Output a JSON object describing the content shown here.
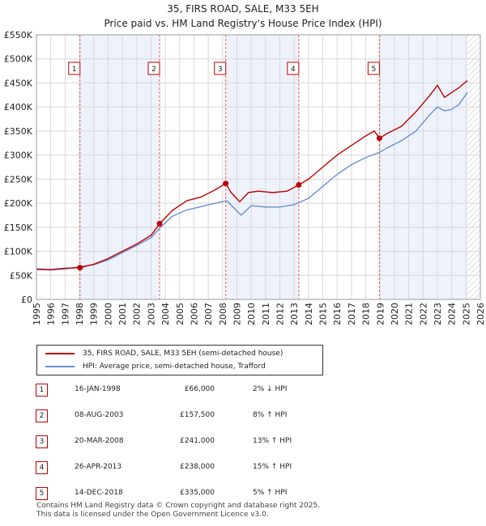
{
  "title": "35, FIRS ROAD, SALE, M33 5EH",
  "subtitle": "Price paid vs. HM Land Registry's House Price Index (HPI)",
  "colors": {
    "price_line": "#c00000",
    "hpi_line": "#6a8fcf",
    "band": "#eef2fb",
    "grid": "#d8d8d8",
    "vline": "#e06060"
  },
  "chart_data": {
    "type": "line",
    "xlim": [
      1995,
      2026
    ],
    "ylim": [
      0,
      550000
    ],
    "ytick_labels": [
      "£0",
      "£50K",
      "£100K",
      "£150K",
      "£200K",
      "£250K",
      "£300K",
      "£350K",
      "£400K",
      "£450K",
      "£500K",
      "£550K"
    ],
    "ytick_values": [
      0,
      50000,
      100000,
      150000,
      200000,
      250000,
      300000,
      350000,
      400000,
      450000,
      500000,
      550000
    ],
    "xtick_labels": [
      "1995",
      "1996",
      "1997",
      "1998",
      "1999",
      "2000",
      "2001",
      "2002",
      "2003",
      "2004",
      "2005",
      "2006",
      "2007",
      "2008",
      "2009",
      "2010",
      "2011",
      "2012",
      "2013",
      "2014",
      "2015",
      "2016",
      "2017",
      "2018",
      "2019",
      "2020",
      "2021",
      "2022",
      "2023",
      "2024",
      "2025",
      "2026"
    ],
    "grid": true,
    "series": [
      {
        "name": "35, FIRS ROAD, SALE, M33 5EH (semi-detached house)",
        "x": [
          1995.0,
          1996.0,
          1997.0,
          1998.04,
          1999.0,
          2000.0,
          2001.0,
          2002.0,
          2003.0,
          2003.6,
          2004.5,
          2005.5,
          2006.5,
          2007.5,
          2008.22,
          2008.6,
          2009.2,
          2009.8,
          2010.5,
          2011.5,
          2012.5,
          2013.32,
          2014.0,
          2015.0,
          2016.0,
          2017.0,
          2018.0,
          2018.6,
          2018.95,
          2019.5,
          2020.5,
          2021.5,
          2022.5,
          2023.0,
          2023.5,
          2024.0,
          2024.5,
          2025.1
        ],
        "values": [
          63000,
          62000,
          65000,
          66000,
          73000,
          85000,
          100000,
          115000,
          133000,
          157500,
          185000,
          205000,
          213000,
          228000,
          241000,
          222000,
          203000,
          222000,
          225000,
          222000,
          225000,
          238000,
          250000,
          275000,
          300000,
          320000,
          340000,
          350000,
          335000,
          345000,
          360000,
          390000,
          425000,
          445000,
          420000,
          430000,
          440000,
          455000
        ]
      },
      {
        "name": "HPI: Average price, semi-detached house, Trafford",
        "x": [
          1995.0,
          1996.0,
          1997.0,
          1998.0,
          1999.0,
          2000.0,
          2001.0,
          2002.0,
          2003.0,
          2003.6,
          2004.5,
          2005.5,
          2006.5,
          2007.5,
          2008.3,
          2008.8,
          2009.3,
          2010.0,
          2011.0,
          2012.0,
          2013.0,
          2014.0,
          2015.0,
          2016.0,
          2017.0,
          2018.0,
          2018.9,
          2019.5,
          2020.5,
          2021.5,
          2022.5,
          2023.0,
          2023.5,
          2024.0,
          2024.5,
          2025.1
        ],
        "values": [
          62000,
          61000,
          63000,
          68000,
          72000,
          82000,
          97000,
          112000,
          128000,
          148000,
          173000,
          186000,
          193000,
          200000,
          205000,
          190000,
          175000,
          195000,
          192000,
          192000,
          197000,
          210000,
          235000,
          260000,
          280000,
          295000,
          305000,
          315000,
          330000,
          350000,
          385000,
          400000,
          392000,
          395000,
          405000,
          430000
        ]
      }
    ],
    "sale_markers": [
      {
        "label": "1",
        "x": 1998.04,
        "y": 66000
      },
      {
        "label": "2",
        "x": 2003.6,
        "y": 157500
      },
      {
        "label": "3",
        "x": 2008.22,
        "y": 241000
      },
      {
        "label": "4",
        "x": 2013.32,
        "y": 238000
      },
      {
        "label": "5",
        "x": 2018.95,
        "y": 335000
      }
    ],
    "shaded_bands": [
      [
        1998.04,
        2003.6
      ],
      [
        2008.22,
        2013.32
      ],
      [
        2018.95,
        2025.1
      ]
    ],
    "hatched_region": [
      2025.1,
      2026
    ]
  },
  "legend": {
    "price_label": "35, FIRS ROAD, SALE, M33 5EH (semi-detached house)",
    "hpi_label": "HPI: Average price, semi-detached house, Trafford"
  },
  "sales": [
    {
      "num": "1",
      "date": "16-JAN-1998",
      "price": "£66,000",
      "hpi": "2% ↓ HPI"
    },
    {
      "num": "2",
      "date": "08-AUG-2003",
      "price": "£157,500",
      "hpi": "8% ↑ HPI"
    },
    {
      "num": "3",
      "date": "20-MAR-2008",
      "price": "£241,000",
      "hpi": "13% ↑ HPI"
    },
    {
      "num": "4",
      "date": "26-APR-2013",
      "price": "£238,000",
      "hpi": "15% ↑ HPI"
    },
    {
      "num": "5",
      "date": "14-DEC-2018",
      "price": "£335,000",
      "hpi": "5% ↑ HPI"
    }
  ],
  "footer": {
    "line1": "Contains HM Land Registry data © Crown copyright and database right 2025.",
    "line2": "This data is licensed under the Open Government Licence v3.0."
  }
}
